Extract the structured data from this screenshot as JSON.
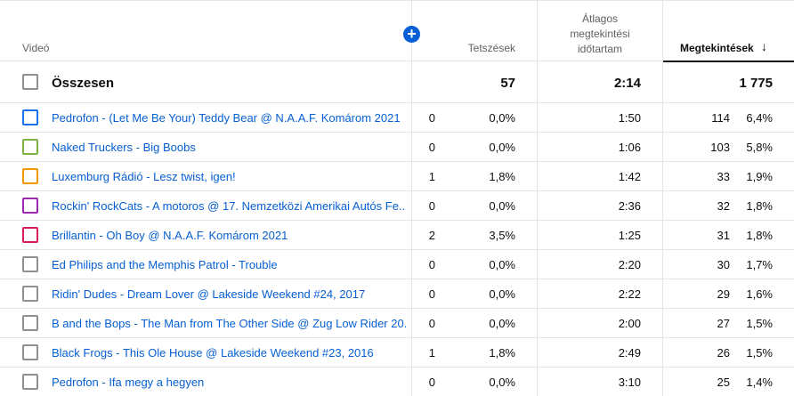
{
  "header": {
    "video": "Videó",
    "likes": "Tetszések",
    "avg_line1": "Átlagos",
    "avg_line2": "megtekintési",
    "avg_line3": "időtartam",
    "views": "Megtekintések",
    "add_icon": "plus-circle-icon",
    "sort_icon": "arrow-down-icon"
  },
  "total": {
    "label": "Összesen",
    "likes": "57",
    "avg": "2:14",
    "views": "1 775"
  },
  "rows": [
    {
      "title": "Pedrofon - (Let Me Be Your) Teddy Bear @ N.A.A.F. Komárom 2021",
      "likes": "0",
      "likes_pct": "0,0%",
      "avg": "1:50",
      "views": "114",
      "views_pct": "6,4%",
      "color": "#1a73e8"
    },
    {
      "title": "Naked Truckers - Big Boobs",
      "likes": "0",
      "likes_pct": "0,0%",
      "avg": "1:06",
      "views": "103",
      "views_pct": "5,8%",
      "color": "#7cb342"
    },
    {
      "title": "Luxemburg Rádió - Lesz twist, igen!",
      "likes": "1",
      "likes_pct": "1,8%",
      "avg": "1:42",
      "views": "33",
      "views_pct": "1,9%",
      "color": "#f29900"
    },
    {
      "title": "Rockin' RockCats - A motoros @ 17. Nemzetközi Amerikai Autós Fe...",
      "likes": "0",
      "likes_pct": "0,0%",
      "avg": "2:36",
      "views": "32",
      "views_pct": "1,8%",
      "color": "#9c27b0"
    },
    {
      "title": "Brillantin - Oh Boy @ N.A.A.F. Komárom 2021",
      "likes": "2",
      "likes_pct": "3,5%",
      "avg": "1:25",
      "views": "31",
      "views_pct": "1,8%",
      "color": "#d81b60"
    },
    {
      "title": "Ed Philips and the Memphis Patrol - Trouble",
      "likes": "0",
      "likes_pct": "0,0%",
      "avg": "2:20",
      "views": "30",
      "views_pct": "1,7%",
      "color": "#909090"
    },
    {
      "title": "Ridin' Dudes - Dream Lover @ Lakeside Weekend #24, 2017",
      "likes": "0",
      "likes_pct": "0,0%",
      "avg": "2:22",
      "views": "29",
      "views_pct": "1,6%",
      "color": "#909090"
    },
    {
      "title": "B and the Bops - The Man from The Other Side @ Zug Low Rider 20...",
      "likes": "0",
      "likes_pct": "0,0%",
      "avg": "2:00",
      "views": "27",
      "views_pct": "1,5%",
      "color": "#909090"
    },
    {
      "title": "Black Frogs - This Ole House @ Lakeside Weekend #23, 2016",
      "likes": "1",
      "likes_pct": "1,8%",
      "avg": "2:49",
      "views": "26",
      "views_pct": "1,5%",
      "color": "#909090"
    },
    {
      "title": "Pedrofon - Ifa megy a hegyen",
      "likes": "0",
      "likes_pct": "0,0%",
      "avg": "3:10",
      "views": "25",
      "views_pct": "1,4%",
      "color": "#909090"
    }
  ]
}
